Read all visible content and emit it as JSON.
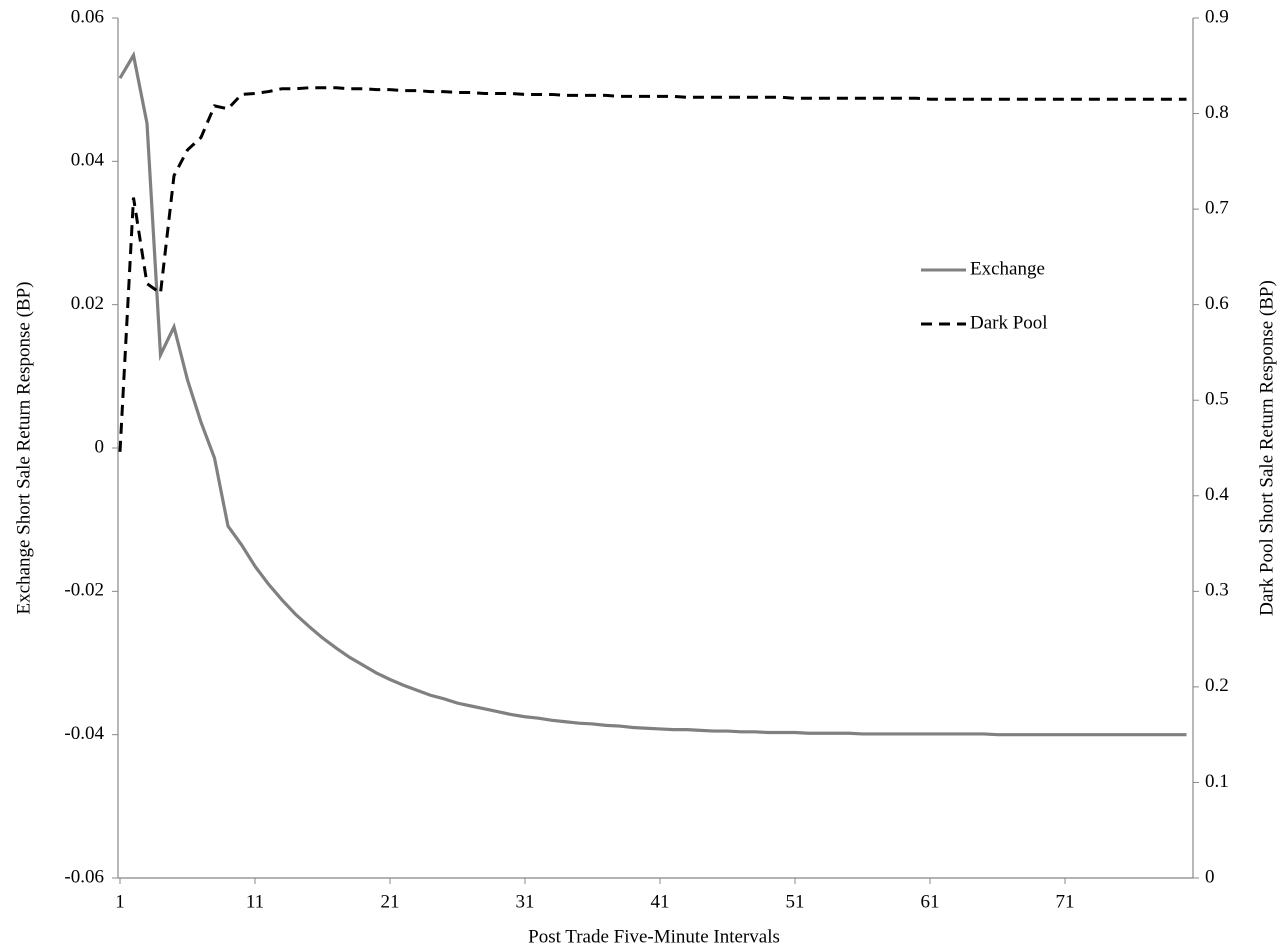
{
  "chart_data": {
    "type": "line",
    "x_label": "Post Trade Five-Minute Intervals",
    "y_label": "Exchange Short Sale Return Response (BP)",
    "y2_label": "Dark Pool Short Sale Return Response (BP)",
    "x": [
      1,
      2,
      3,
      4,
      5,
      6,
      7,
      8,
      9,
      10,
      11,
      12,
      13,
      14,
      15,
      16,
      17,
      18,
      19,
      20,
      21,
      22,
      23,
      24,
      25,
      26,
      27,
      28,
      29,
      30,
      31,
      32,
      33,
      34,
      35,
      36,
      37,
      38,
      39,
      40,
      41,
      42,
      43,
      44,
      45,
      46,
      47,
      48,
      49,
      50,
      51,
      52,
      53,
      54,
      55,
      56,
      57,
      58,
      59,
      60,
      61,
      62,
      63,
      64,
      65,
      66,
      67,
      68,
      69,
      70,
      71,
      72,
      73,
      74,
      75,
      76,
      77,
      78,
      79,
      80
    ],
    "xlim": [
      1,
      80
    ],
    "xticks": [
      1,
      11,
      21,
      31,
      41,
      51,
      61,
      71
    ],
    "ylim": [
      -0.06,
      0.06
    ],
    "yticks": [
      -0.06,
      -0.04,
      -0.02,
      0,
      0.02,
      0.04,
      0.06
    ],
    "y2lim": [
      0,
      0.9
    ],
    "y2ticks": [
      0,
      0.1,
      0.2,
      0.3,
      0.4,
      0.5,
      0.6,
      0.7,
      0.8,
      0.9
    ],
    "grid": false,
    "legend": "right",
    "series": [
      {
        "name": "Exchange",
        "color": "#808080",
        "dash": false,
        "values": [
          0.0516,
          0.0548,
          0.0453,
          0.013,
          0.0169,
          0.0095,
          0.0036,
          -0.0014,
          -0.0109,
          -0.0135,
          -0.0165,
          -0.019,
          -0.0212,
          -0.0232,
          -0.0249,
          -0.0265,
          -0.0279,
          -0.0292,
          -0.0303,
          -0.0314,
          -0.0323,
          -0.0331,
          -0.0338,
          -0.0345,
          -0.035,
          -0.0356,
          -0.036,
          -0.0364,
          -0.0368,
          -0.0372,
          -0.0375,
          -0.0377,
          -0.038,
          -0.0382,
          -0.0384,
          -0.0385,
          -0.0387,
          -0.0388,
          -0.039,
          -0.0391,
          -0.0392,
          -0.0393,
          -0.0393,
          -0.0394,
          -0.0395,
          -0.0395,
          -0.0396,
          -0.0396,
          -0.0397,
          -0.0397,
          -0.0397,
          -0.0398,
          -0.0398,
          -0.0398,
          -0.0398,
          -0.0399,
          -0.0399,
          -0.0399,
          -0.0399,
          -0.0399,
          -0.0399,
          -0.0399,
          -0.0399,
          -0.0399,
          -0.0399,
          -0.04,
          -0.04,
          -0.04,
          -0.04,
          -0.04,
          -0.04,
          -0.04,
          -0.04,
          -0.04,
          -0.04,
          -0.04,
          -0.04,
          -0.04,
          -0.04,
          -0.04
        ]
      },
      {
        "name": "Dark Pool",
        "color": "#000000",
        "dash": true,
        "axis": "y2",
        "values": [
          0.446,
          0.712,
          0.622,
          0.612,
          0.735,
          0.762,
          0.775,
          0.808,
          0.805,
          0.82,
          0.821,
          0.823,
          0.826,
          0.826,
          0.827,
          0.827,
          0.827,
          0.826,
          0.826,
          0.825,
          0.825,
          0.824,
          0.824,
          0.823,
          0.823,
          0.822,
          0.822,
          0.821,
          0.821,
          0.821,
          0.82,
          0.82,
          0.82,
          0.819,
          0.819,
          0.819,
          0.819,
          0.818,
          0.818,
          0.818,
          0.818,
          0.818,
          0.817,
          0.817,
          0.817,
          0.817,
          0.817,
          0.817,
          0.817,
          0.817,
          0.816,
          0.816,
          0.816,
          0.816,
          0.816,
          0.816,
          0.816,
          0.816,
          0.816,
          0.816,
          0.815,
          0.815,
          0.815,
          0.815,
          0.815,
          0.815,
          0.815,
          0.815,
          0.815,
          0.815,
          0.815,
          0.815,
          0.815,
          0.815,
          0.815,
          0.815,
          0.815,
          0.815,
          0.815,
          0.815
        ]
      }
    ]
  }
}
